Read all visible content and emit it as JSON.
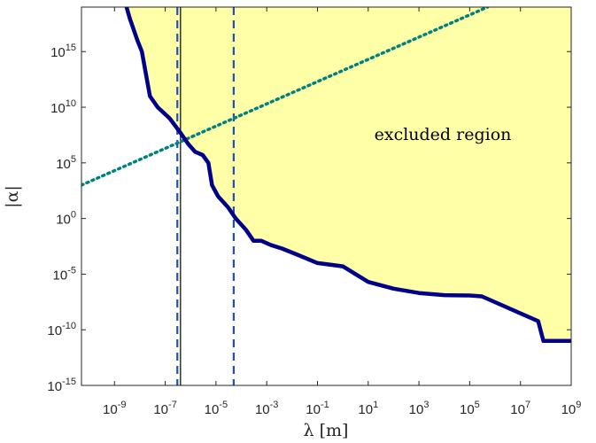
{
  "chart_data": {
    "type": "line",
    "title": "",
    "xlabel": "λ [m]",
    "ylabel": "|α|",
    "x_scale": "log",
    "y_scale": "log",
    "xlim": [
      5e-11,
      1000000000.0
    ],
    "ylim": [
      1e-15,
      1e+19
    ],
    "x_ticks": [
      {
        "base": "10",
        "exp": "-9",
        "value": 1e-09
      },
      {
        "base": "10",
        "exp": "-7",
        "value": 1e-07
      },
      {
        "base": "10",
        "exp": "-5",
        "value": 1e-05
      },
      {
        "base": "10",
        "exp": "-3",
        "value": 0.001
      },
      {
        "base": "10",
        "exp": "-1",
        "value": 0.1
      },
      {
        "base": "10",
        "exp": "1",
        "value": 10.0
      },
      {
        "base": "10",
        "exp": "3",
        "value": 1000.0
      },
      {
        "base": "10",
        "exp": "5",
        "value": 100000.0
      },
      {
        "base": "10",
        "exp": "7",
        "value": 10000000.0
      },
      {
        "base": "10",
        "exp": "9",
        "value": 1000000000.0
      }
    ],
    "y_ticks": [
      {
        "base": "10",
        "exp": "-15",
        "value": 1e-15
      },
      {
        "base": "10",
        "exp": "-10",
        "value": 1e-10
      },
      {
        "base": "10",
        "exp": "-5",
        "value": 1e-05
      },
      {
        "base": "10",
        "exp": "0",
        "value": 1
      },
      {
        "base": "10",
        "exp": "5",
        "value": 100000.0
      },
      {
        "base": "10",
        "exp": "10",
        "value": 10000000000.0
      },
      {
        "base": "10",
        "exp": "15",
        "value": 1000000000000000.0
      }
    ],
    "grid": false,
    "annotations": [
      {
        "text": "excluded region",
        "x": 3000.0,
        "y": 10000000.0
      }
    ],
    "series": [
      {
        "role": "exclusion boundary",
        "style": "solid thick",
        "color": "#00008B",
        "points": [
          [
            3e-09,
            1e+19
          ],
          [
            4e-09,
            1e+18
          ],
          [
            8e-09,
            1e+16
          ],
          [
            1.2e-08,
            1000000000000000.0
          ],
          [
            2.5e-08,
            100000000000.0
          ],
          [
            5e-08,
            10000000000.0
          ],
          [
            1.5e-07,
            1000000000.0
          ],
          [
            4e-07,
            50000000.0
          ],
          [
            8e-07,
            5000000.0
          ],
          [
            1.5e-06,
            1000000.0
          ],
          [
            3e-06,
            500000.0
          ],
          [
            5e-06,
            100000.0
          ],
          [
            7e-06,
            1000.0
          ],
          [
            1.2e-05,
            100.0
          ],
          [
            3e-05,
            10.0
          ],
          [
            6e-05,
            1.0
          ],
          [
            0.00015,
            0.1
          ],
          [
            0.0003,
            0.01
          ],
          [
            0.0006,
            0.01
          ],
          [
            0.0015,
            0.004
          ],
          [
            0.004,
            0.002
          ],
          [
            0.015,
            0.0006
          ],
          [
            0.1,
            0.0001
          ],
          [
            1,
            5e-05
          ],
          [
            10.0,
            2e-06
          ],
          [
            100.0,
            5e-07
          ],
          [
            1000.0,
            2e-07
          ],
          [
            10000.0,
            1.3e-07
          ],
          [
            100000.0,
            1.2e-07
          ],
          [
            300000.0,
            1e-07
          ],
          [
            10000000.0,
            3e-09
          ],
          [
            50000000.0,
            6e-10
          ],
          [
            80000000.0,
            1e-11
          ],
          [
            1000000000.0,
            1e-11
          ]
        ]
      },
      {
        "role": "prediction line",
        "style": "dotted",
        "color": "#008080",
        "points": [
          [
            5e-11,
            1000.0
          ],
          [
            500000.0,
            1e+19
          ]
        ]
      }
    ],
    "vertical_lines": [
      {
        "x": 4e-07,
        "style": "solid thin",
        "color": "#000000"
      },
      {
        "x": 3e-07,
        "style": "dashed",
        "color": "#1F4FBF"
      },
      {
        "x": 5e-05,
        "style": "dashed",
        "color": "#1F4FBF"
      }
    ],
    "fill_color": "#FFFFA8"
  }
}
